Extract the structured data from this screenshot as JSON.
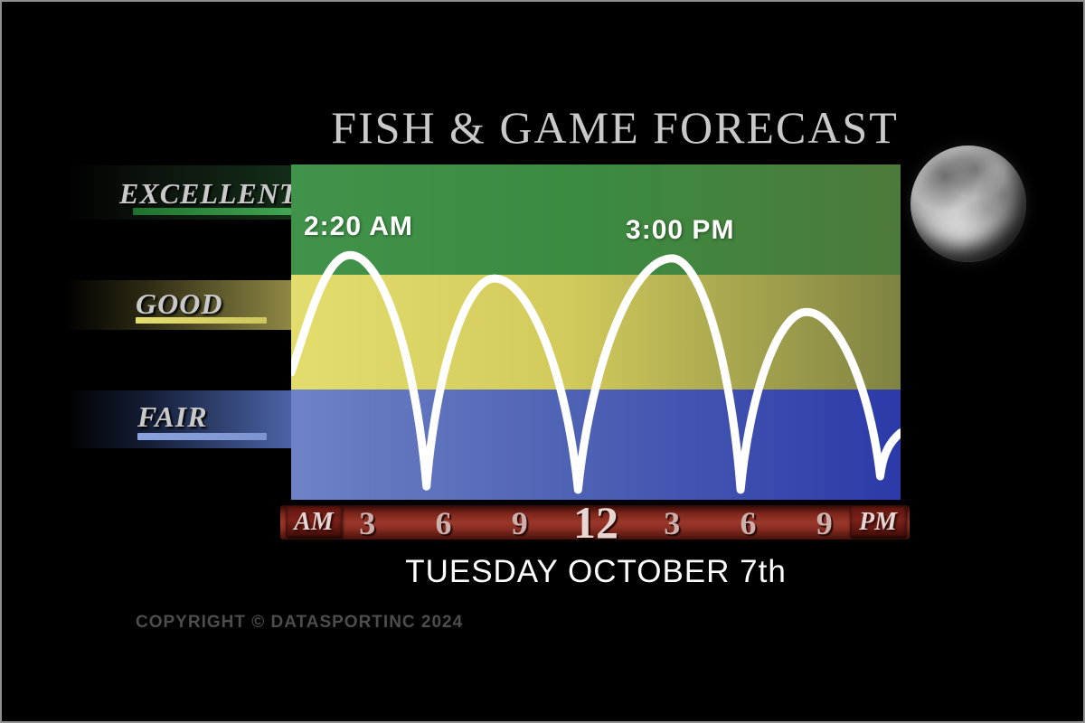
{
  "title": "FISH & GAME FORECAST",
  "date_line": "TUESDAY OCTOBER 7th",
  "copyright_line": "COPYRIGHT © DATASPORTINC 2024",
  "moon_phase_icon": "full-moon",
  "ratings": [
    {
      "label": "EXCELLENT",
      "underline_color": "#3fa24c"
    },
    {
      "label": "GOOD",
      "underline_color": "#ded766"
    },
    {
      "label": "FAIR",
      "underline_color": "#8ba3dd"
    }
  ],
  "axis": {
    "am_label": "AM",
    "pm_label": "PM",
    "bar_color": "#92301f",
    "endcap_color": "#6d1a12",
    "number_color": "#cdb0ac",
    "hours": [
      {
        "label": "3",
        "hour": 3
      },
      {
        "label": "6",
        "hour": 6
      },
      {
        "label": "9",
        "hour": 9
      },
      {
        "label": "12",
        "hour": 12,
        "major": true
      },
      {
        "label": "3",
        "hour": 15
      },
      {
        "label": "6",
        "hour": 18
      },
      {
        "label": "9",
        "hour": 21
      }
    ]
  },
  "chart_data": {
    "type": "line",
    "title": "FISH & GAME FORECAST",
    "subtitle": "TUESDAY OCTOBER 7th",
    "x_axis_labels": [
      "AM",
      "3",
      "6",
      "9",
      "12",
      "3",
      "6",
      "9",
      "PM"
    ],
    "x_range_hours": [
      0,
      24
    ],
    "ylim": [
      0,
      100
    ],
    "grid": false,
    "legend": "left-band-labels",
    "y_bands": [
      {
        "label": "EXCELLENT",
        "range": [
          67,
          100
        ],
        "color_left": "#41934b",
        "color_mid": "#3a8c41",
        "color_right": "#4d7a3a"
      },
      {
        "label": "GOOD",
        "range": [
          33,
          67
        ],
        "color_left": "#e3dd6d",
        "color_mid": "#d2cb5c",
        "color_right": "#7f8342"
      },
      {
        "label": "FAIR",
        "range": [
          0,
          33
        ],
        "color_left": "#6e82c6",
        "color_mid": "#4f63b5",
        "color_right": "#2c3aa8"
      }
    ],
    "series": [
      {
        "name": "solunar-activity",
        "line_color": "#ffffff",
        "points": [
          {
            "hour": 0.0,
            "level": 38,
            "role": "start"
          },
          {
            "hour": 2.33,
            "level": 73,
            "role": "peak",
            "label": "2:20 AM"
          },
          {
            "hour": 5.33,
            "level": 4,
            "role": "trough"
          },
          {
            "hour": 8.0,
            "level": 66,
            "role": "peak"
          },
          {
            "hour": 11.3,
            "level": 3,
            "role": "trough"
          },
          {
            "hour": 15.0,
            "level": 72,
            "role": "peak",
            "label": "3:00 PM"
          },
          {
            "hour": 17.7,
            "level": 3,
            "role": "trough"
          },
          {
            "hour": 20.3,
            "level": 56,
            "role": "peak"
          },
          {
            "hour": 23.2,
            "level": 7,
            "role": "trough"
          },
          {
            "hour": 24.0,
            "level": 20,
            "role": "end"
          }
        ]
      }
    ],
    "annotations": [
      {
        "text": "2:20 AM",
        "hour": 2.33
      },
      {
        "text": "3:00 PM",
        "hour": 15.0
      }
    ]
  }
}
